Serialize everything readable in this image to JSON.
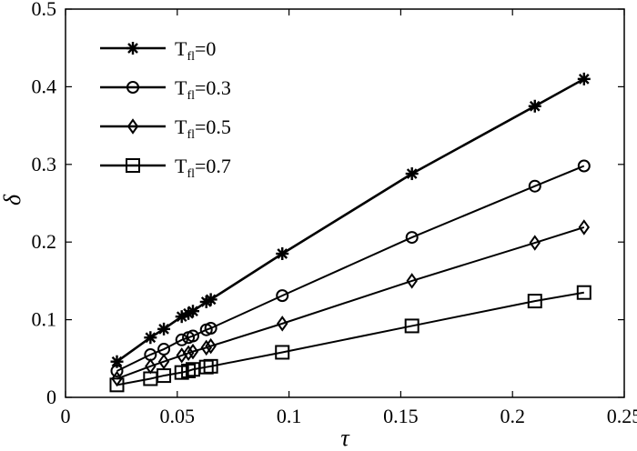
{
  "chart_data": {
    "type": "line",
    "xlabel": "τ",
    "ylabel": "δ",
    "xlim": [
      0,
      0.25
    ],
    "ylim": [
      0,
      0.5
    ],
    "xticks": [
      "0",
      "0.05",
      "0.1",
      "0.15",
      "0.2",
      "0.25"
    ],
    "yticks": [
      "0",
      "0.1",
      "0.2",
      "0.3",
      "0.4",
      "0.5"
    ],
    "grid": false,
    "legend_position": "top-left",
    "series": [
      {
        "name_main": "T",
        "name_sub": "fl",
        "name_tail": "=0",
        "marker": "star",
        "x": [
          0.023,
          0.038,
          0.044,
          0.052,
          0.055,
          0.057,
          0.063,
          0.065,
          0.097,
          0.155,
          0.21,
          0.232
        ],
        "y": [
          0.046,
          0.077,
          0.088,
          0.104,
          0.108,
          0.111,
          0.123,
          0.126,
          0.185,
          0.288,
          0.375,
          0.41
        ]
      },
      {
        "name_main": "T",
        "name_sub": "fl",
        "name_tail": "=0.3",
        "marker": "circle",
        "x": [
          0.023,
          0.038,
          0.044,
          0.052,
          0.055,
          0.057,
          0.063,
          0.065,
          0.097,
          0.155,
          0.21,
          0.232
        ],
        "y": [
          0.034,
          0.055,
          0.062,
          0.074,
          0.077,
          0.079,
          0.087,
          0.089,
          0.131,
          0.206,
          0.272,
          0.298
        ]
      },
      {
        "name_main": "T",
        "name_sub": "fl",
        "name_tail": "=0.5",
        "marker": "diamond",
        "x": [
          0.023,
          0.038,
          0.044,
          0.052,
          0.055,
          0.057,
          0.063,
          0.065,
          0.097,
          0.155,
          0.21,
          0.232
        ],
        "y": [
          0.024,
          0.04,
          0.046,
          0.054,
          0.057,
          0.059,
          0.064,
          0.066,
          0.095,
          0.15,
          0.199,
          0.219
        ]
      },
      {
        "name_main": "T",
        "name_sub": "fl",
        "name_tail": "=0.7",
        "marker": "square",
        "x": [
          0.023,
          0.038,
          0.044,
          0.052,
          0.055,
          0.057,
          0.063,
          0.065,
          0.097,
          0.155,
          0.21,
          0.232
        ],
        "y": [
          0.016,
          0.024,
          0.028,
          0.032,
          0.034,
          0.036,
          0.039,
          0.04,
          0.058,
          0.092,
          0.124,
          0.135
        ]
      }
    ]
  }
}
